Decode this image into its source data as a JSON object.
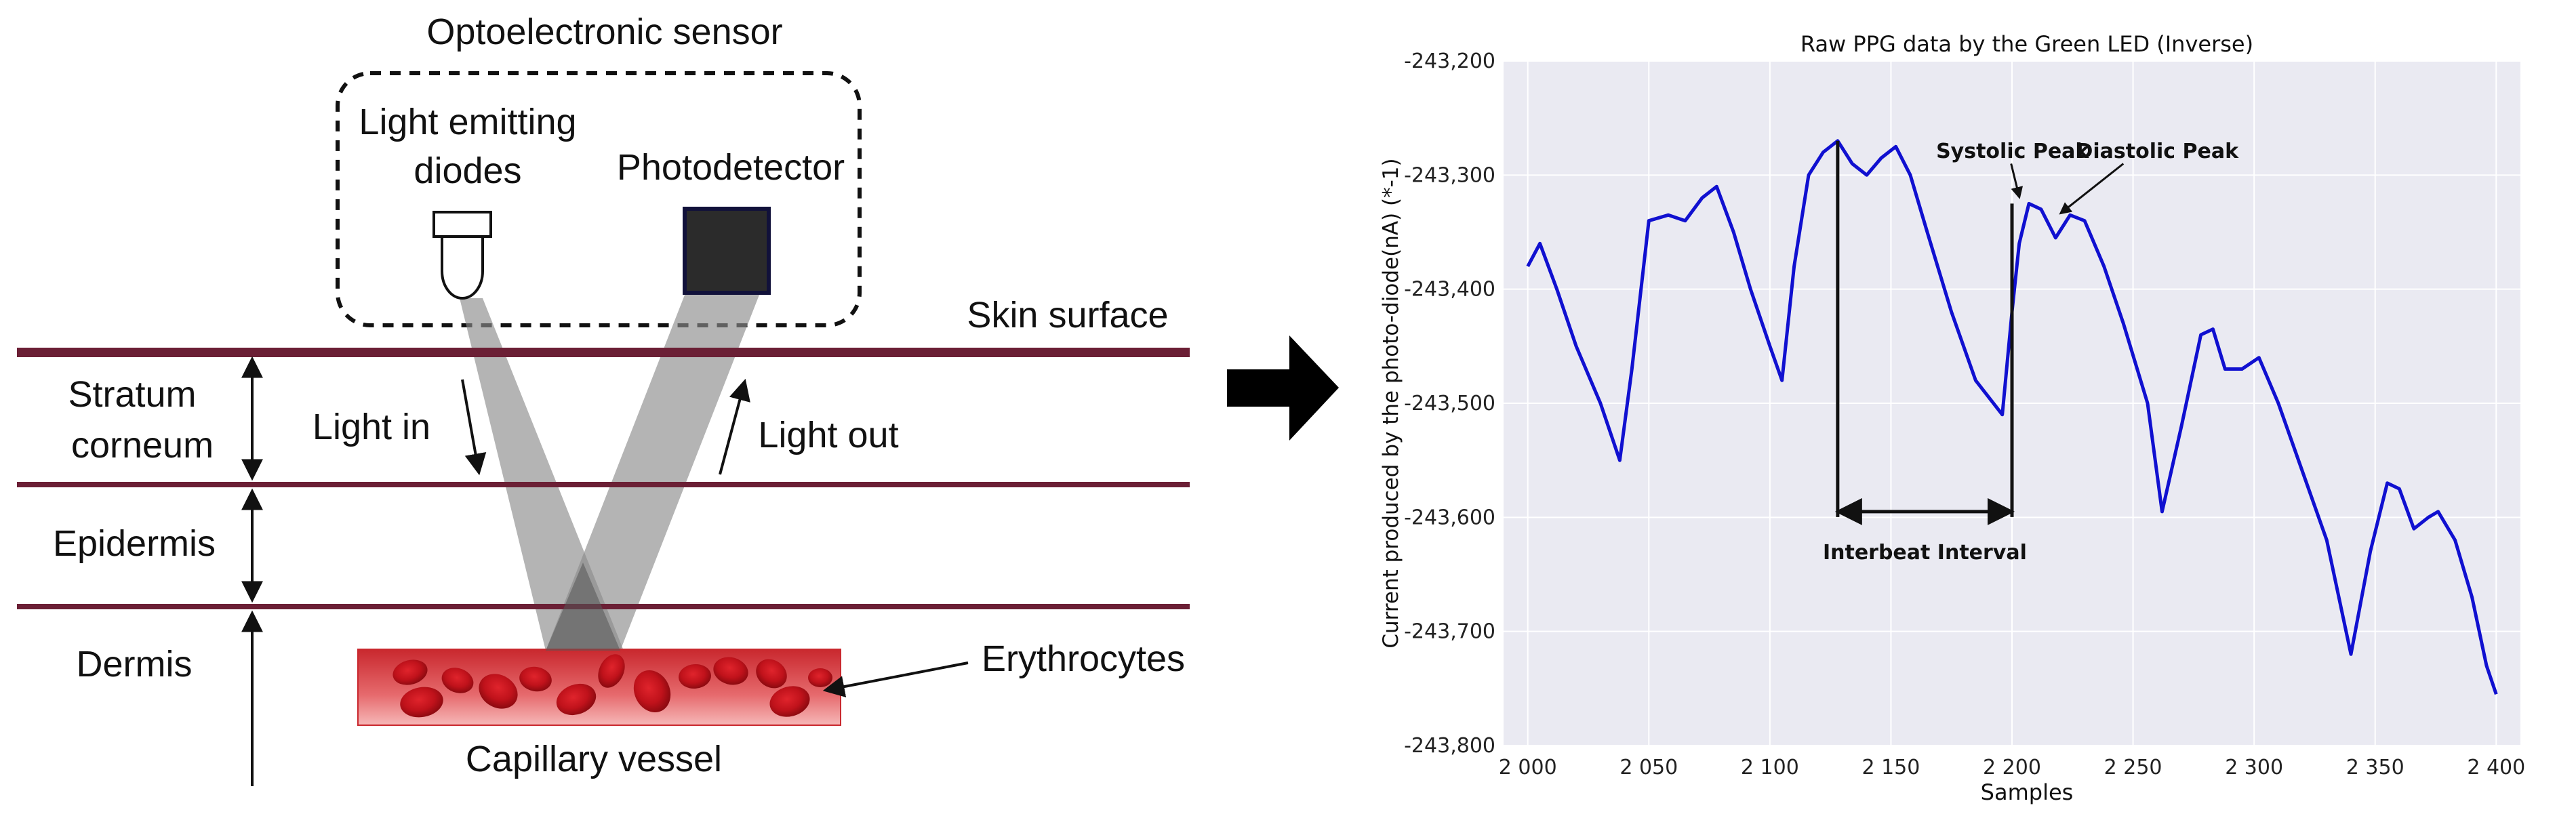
{
  "diagram": {
    "sensor_title": "Optoelectronic sensor",
    "led_label_line1": "Light emitting",
    "led_label_line2": "diodes",
    "photodetector_label": "Photodetector",
    "skin_surface_label": "Skin surface",
    "stratum_line1": "Stratum",
    "stratum_line2": "corneum",
    "epidermis_label": "Epidermis",
    "dermis_label": "Dermis",
    "light_in_label": "Light in",
    "light_out_label": "Light out",
    "erythrocytes_label": "Erythrocytes",
    "capillary_label": "Capillary vessel",
    "layer_line_color": "#6b1f35",
    "vessel_color": "#d9454a",
    "cell_color": "#c0121b"
  },
  "chart_data": {
    "type": "line",
    "title": "Raw PPG data by the Green LED (Inverse)",
    "xlabel": "Samples",
    "ylabel": "Current produced by the photo-diode(nA) (*-1)",
    "xlim": [
      1990,
      2410
    ],
    "ylim": [
      -243800,
      -243200
    ],
    "x_ticks": [
      "2 000",
      "2 050",
      "2 100",
      "2 150",
      "2 200",
      "2 250",
      "2 300",
      "2 350",
      "2 400"
    ],
    "y_ticks": [
      "-243,200",
      "-243,300",
      "-243,400",
      "-243,500",
      "-243,600",
      "-243,700",
      "-243,800"
    ],
    "grid": true,
    "background": "#eaeaf2",
    "line_color": "#1010d0",
    "series": [
      {
        "x": [
          2000,
          2005,
          2012,
          2020,
          2030,
          2038,
          2043,
          2050,
          2058,
          2065,
          2072,
          2078,
          2085,
          2092,
          2100,
          2105,
          2110,
          2116,
          2122,
          2128,
          2134,
          2140,
          2146,
          2152,
          2158,
          2165,
          2175,
          2185,
          2196,
          2200,
          2203,
          2207,
          2212,
          2218,
          2224,
          2230,
          2238,
          2246,
          2256,
          2262,
          2270,
          2278,
          2283,
          2288,
          2295,
          2302,
          2310,
          2320,
          2330,
          2340,
          2348,
          2355,
          2360,
          2366,
          2372,
          2376,
          2383,
          2390,
          2396,
          2400
        ],
        "y": [
          -243380,
          -243360,
          -243400,
          -243450,
          -243500,
          -243550,
          -243470,
          -243340,
          -243335,
          -243340,
          -243320,
          -243310,
          -243350,
          -243400,
          -243450,
          -243480,
          -243380,
          -243300,
          -243280,
          -243270,
          -243290,
          -243300,
          -243285,
          -243275,
          -243300,
          -243350,
          -243420,
          -243480,
          -243510,
          -243420,
          -243360,
          -243325,
          -243330,
          -243355,
          -243335,
          -243340,
          -243380,
          -243430,
          -243500,
          -243595,
          -243520,
          -243440,
          -243435,
          -243470,
          -243470,
          -243460,
          -243500,
          -243560,
          -243620,
          -243720,
          -243630,
          -243570,
          -243575,
          -243610,
          -243600,
          -243595,
          -243620,
          -243670,
          -243730,
          -243755
        ]
      }
    ],
    "annotations": {
      "systolic": "Systolic Peak",
      "diastolic": "Diastolic Peak",
      "interbeat": "Interbeat Interval"
    }
  }
}
